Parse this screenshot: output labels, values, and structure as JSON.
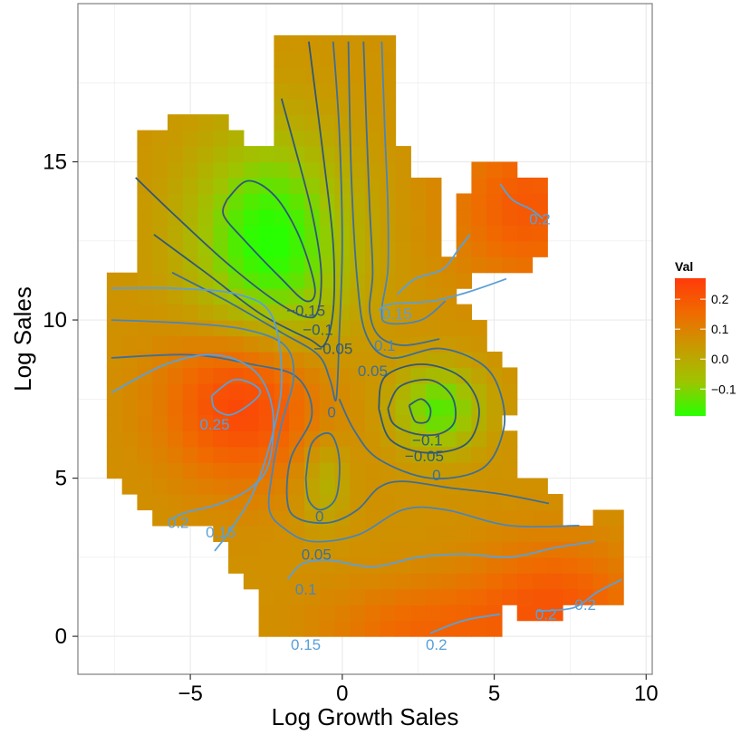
{
  "chart_data": {
    "type": "heatmap",
    "title": "",
    "xlabel": "Log Growth Sales",
    "ylabel": "Log Sales",
    "xlim": [
      -8.7,
      10.2
    ],
    "ylim": [
      -1.2,
      20.0
    ],
    "x_ticks": [
      -5,
      0,
      5,
      10
    ],
    "y_ticks": [
      0,
      5,
      10,
      15
    ],
    "x_tick_labels": [
      "−5",
      "0",
      "5",
      "10"
    ],
    "y_tick_labels": [
      "0",
      "5",
      "10",
      "15"
    ],
    "grid": true,
    "legend": {
      "title": "Val",
      "placement": "right",
      "range": [
        -0.19,
        0.27
      ],
      "ticks": [
        0.2,
        0.1,
        0.0,
        -0.1
      ],
      "tick_labels": [
        "0.2",
        "0.1",
        "0.0",
        "−0.1"
      ],
      "colors": [
        "#ff3a0a",
        "#f06a00",
        "#c89a00",
        "#9ec400",
        "#28ff00"
      ]
    },
    "contour_labels": [
      {
        "text": "−0.15",
        "x": -1.2,
        "y": 10.3,
        "value": -0.15
      },
      {
        "text": "−0.1",
        "x": -0.8,
        "y": 9.7,
        "value": -0.1
      },
      {
        "text": "−0.05",
        "x": -0.3,
        "y": 9.1,
        "value": -0.05
      },
      {
        "text": "0",
        "x": -0.35,
        "y": 7.1,
        "value": 0
      },
      {
        "text": "0.25",
        "x": -4.2,
        "y": 6.7,
        "value": 0.25
      },
      {
        "text": "0.2",
        "x": -5.4,
        "y": 3.6,
        "value": 0.2
      },
      {
        "text": "0.15",
        "x": -4.0,
        "y": 3.3,
        "value": 0.15
      },
      {
        "text": "0",
        "x": -0.75,
        "y": 3.8,
        "value": 0
      },
      {
        "text": "0.05",
        "x": -0.85,
        "y": 2.6,
        "value": 0.05
      },
      {
        "text": "0.1",
        "x": -1.2,
        "y": 1.5,
        "value": 0.1
      },
      {
        "text": "0.15",
        "x": -1.2,
        "y": -0.25,
        "value": 0.15
      },
      {
        "text": "0.2",
        "x": 3.1,
        "y": -0.25,
        "value": 0.2
      },
      {
        "text": "0.2",
        "x": 6.7,
        "y": 0.7,
        "value": 0.2
      },
      {
        "text": "0.2",
        "x": 8.0,
        "y": 1.0,
        "value": 0.2
      },
      {
        "text": "0.2",
        "x": 6.5,
        "y": 13.2,
        "value": 0.2
      },
      {
        "text": "0.15",
        "x": 1.8,
        "y": 10.2,
        "value": 0.15
      },
      {
        "text": "0.1",
        "x": 1.4,
        "y": 9.2,
        "value": 0.1
      },
      {
        "text": "0.05",
        "x": 1.0,
        "y": 8.4,
        "value": 0.05
      },
      {
        "text": "−0.1",
        "x": 2.8,
        "y": 6.2,
        "value": -0.1
      },
      {
        "text": "−0.05",
        "x": 2.7,
        "y": 5.7,
        "value": -0.05
      },
      {
        "text": "0",
        "x": 3.1,
        "y": 5.1,
        "value": 0
      }
    ],
    "contours": [
      {
        "value": -0.15,
        "points": [
          [
            -3.8,
            13.8
          ],
          [
            -3.1,
            14.4
          ],
          [
            -2.2,
            13.9
          ],
          [
            -1.4,
            12.6
          ],
          [
            -0.9,
            11.0
          ],
          [
            -1.2,
            10.6
          ],
          [
            -2.0,
            11.3
          ],
          [
            -3.2,
            12.5
          ],
          [
            -3.9,
            13.3
          ],
          [
            -3.8,
            13.8
          ]
        ]
      },
      {
        "value": -0.15,
        "points": [
          [
            2.2,
            7.3
          ],
          [
            2.6,
            7.5
          ],
          [
            2.9,
            7.2
          ],
          [
            2.8,
            6.8
          ],
          [
            2.4,
            6.8
          ],
          [
            2.2,
            7.3
          ]
        ]
      },
      {
        "value": -0.1,
        "points": [
          [
            -6.8,
            14.5
          ],
          [
            -5.5,
            13.3
          ],
          [
            -3.8,
            11.8
          ],
          [
            -2.2,
            10.6
          ],
          [
            -1.2,
            10.1
          ],
          [
            -0.8,
            10.3
          ],
          [
            -0.7,
            11.6
          ],
          [
            -1.0,
            13.4
          ],
          [
            -1.6,
            15.6
          ],
          [
            -2.0,
            17.0
          ]
        ]
      },
      {
        "value": -0.1,
        "points": [
          [
            1.5,
            7.2
          ],
          [
            1.9,
            7.9
          ],
          [
            2.9,
            8.1
          ],
          [
            3.6,
            7.6
          ],
          [
            3.7,
            6.8
          ],
          [
            3.2,
            6.4
          ],
          [
            2.4,
            6.4
          ],
          [
            1.7,
            6.7
          ],
          [
            1.5,
            7.2
          ]
        ]
      },
      {
        "value": -0.05,
        "points": [
          [
            -6.2,
            12.7
          ],
          [
            -4.5,
            11.5
          ],
          [
            -2.7,
            10.2
          ],
          [
            -1.1,
            9.4
          ],
          [
            -0.6,
            9.2
          ],
          [
            -0.3,
            10.3
          ],
          [
            -0.3,
            12.4
          ],
          [
            -0.6,
            15.0
          ],
          [
            -1.1,
            18.8
          ]
        ]
      },
      {
        "value": -0.05,
        "points": [
          [
            1.2,
            7.2
          ],
          [
            1.4,
            8.2
          ],
          [
            2.6,
            8.6
          ],
          [
            3.9,
            8.2
          ],
          [
            4.5,
            7.2
          ],
          [
            4.1,
            6.1
          ],
          [
            2.8,
            5.8
          ],
          [
            1.6,
            6.2
          ],
          [
            1.2,
            7.2
          ]
        ]
      },
      {
        "value": 0,
        "points": [
          [
            -5.6,
            11.5
          ],
          [
            -3.8,
            10.6
          ],
          [
            -2.0,
            9.6
          ],
          [
            -0.8,
            8.9
          ],
          [
            -0.4,
            8.1
          ],
          [
            -0.2,
            7.5
          ],
          [
            -0.1,
            9.5
          ],
          [
            0.0,
            12.4
          ],
          [
            -0.1,
            16.0
          ],
          [
            -0.3,
            18.8
          ]
        ]
      },
      {
        "value": 0,
        "points": [
          [
            -1.2,
            5.0
          ],
          [
            -1.0,
            6.1
          ],
          [
            -0.4,
            6.4
          ],
          [
            -0.1,
            5.6
          ],
          [
            -0.2,
            4.4
          ],
          [
            -0.7,
            4.0
          ],
          [
            -1.1,
            4.3
          ],
          [
            -1.2,
            5.0
          ]
        ]
      },
      {
        "value": 0,
        "points": [
          [
            -0.1,
            7.5
          ],
          [
            0.4,
            6.5
          ],
          [
            1.2,
            5.6
          ],
          [
            2.9,
            5.0
          ],
          [
            4.6,
            5.3
          ],
          [
            5.3,
            6.5
          ],
          [
            5.2,
            7.7
          ],
          [
            4.6,
            8.6
          ],
          [
            3.2,
            9.1
          ],
          [
            1.6,
            8.8
          ],
          [
            0.8,
            9.5
          ],
          [
            0.5,
            11.2
          ],
          [
            0.3,
            14.5
          ],
          [
            0.2,
            18.8
          ]
        ]
      },
      {
        "value": 0.05,
        "points": [
          [
            -7.6,
            8.8
          ],
          [
            -5.0,
            8.9
          ],
          [
            -3.0,
            8.6
          ],
          [
            -1.5,
            8.2
          ],
          [
            -1.0,
            7.0
          ],
          [
            -1.7,
            5.6
          ],
          [
            -1.8,
            4.2
          ],
          [
            -1.4,
            3.7
          ],
          [
            -0.4,
            3.6
          ],
          [
            0.5,
            4.0
          ],
          [
            1.2,
            4.7
          ],
          [
            2.0,
            4.9
          ],
          [
            3.5,
            4.7
          ],
          [
            5.2,
            4.5
          ],
          [
            6.8,
            4.2
          ]
        ]
      },
      {
        "value": 0.05,
        "points": [
          [
            0.7,
            18.8
          ],
          [
            0.8,
            16.0
          ],
          [
            0.9,
            13.6
          ],
          [
            1.0,
            11.5
          ],
          [
            0.9,
            10.3
          ],
          [
            1.2,
            9.5
          ],
          [
            2.0,
            9.2
          ],
          [
            3.2,
            9.4
          ]
        ]
      },
      {
        "value": 0.1,
        "points": [
          [
            -7.6,
            10.0
          ],
          [
            -5.2,
            9.9
          ],
          [
            -3.2,
            9.7
          ],
          [
            -1.9,
            9.2
          ],
          [
            -1.6,
            8.2
          ],
          [
            -2.0,
            6.7
          ],
          [
            -2.3,
            5.2
          ],
          [
            -2.4,
            4.0
          ],
          [
            -1.9,
            3.4
          ],
          [
            -1.0,
            3.0
          ],
          [
            0.5,
            3.2
          ],
          [
            2.0,
            4.0
          ],
          [
            3.4,
            4.0
          ],
          [
            5.5,
            3.5
          ],
          [
            7.8,
            3.5
          ]
        ]
      },
      {
        "value": 0.1,
        "points": [
          [
            1.3,
            18.8
          ],
          [
            1.4,
            16.0
          ],
          [
            1.5,
            13.6
          ],
          [
            1.5,
            11.6
          ],
          [
            1.3,
            10.3
          ],
          [
            1.5,
            9.9
          ],
          [
            2.6,
            10.0
          ],
          [
            3.4,
            10.6
          ]
        ]
      },
      {
        "value": 0.15,
        "points": [
          [
            -7.6,
            11.0
          ],
          [
            -5.5,
            11.0
          ],
          [
            -3.4,
            10.8
          ],
          [
            -2.3,
            10.1
          ],
          [
            -2.0,
            8.0
          ],
          [
            -2.4,
            6.0
          ],
          [
            -3.0,
            4.4
          ],
          [
            -3.8,
            3.2
          ],
          [
            -4.2,
            2.7
          ]
        ]
      },
      {
        "value": 0.15,
        "points": [
          [
            -1.8,
            1.8
          ],
          [
            -1.3,
            2.3
          ],
          [
            -0.4,
            2.4
          ],
          [
            1.0,
            2.2
          ],
          [
            2.5,
            2.5
          ],
          [
            4.0,
            2.6
          ],
          [
            5.5,
            2.5
          ],
          [
            7.0,
            2.8
          ],
          [
            8.3,
            3.0
          ]
        ]
      },
      {
        "value": 0.15,
        "points": [
          [
            1.8,
            10.8
          ],
          [
            2.4,
            11.3
          ],
          [
            3.3,
            11.6
          ],
          [
            3.8,
            12.2
          ],
          [
            4.2,
            12.7
          ]
        ]
      },
      {
        "value": 0.15,
        "points": [
          [
            1.2,
            10.3
          ],
          [
            1.6,
            10.5
          ],
          [
            3.0,
            10.6
          ],
          [
            4.2,
            10.9
          ],
          [
            5.4,
            11.3
          ]
        ]
      },
      {
        "value": 0.2,
        "points": [
          [
            -7.6,
            7.7
          ],
          [
            -5.8,
            8.6
          ],
          [
            -4.2,
            8.9
          ],
          [
            -2.9,
            8.4
          ],
          [
            -2.3,
            7.2
          ],
          [
            -2.4,
            5.5
          ],
          [
            -3.0,
            4.7
          ],
          [
            -4.0,
            4.2
          ],
          [
            -5.2,
            3.9
          ],
          [
            -5.6,
            3.7
          ]
        ]
      },
      {
        "value": 0.2,
        "points": [
          [
            2.9,
            0.1
          ],
          [
            4.0,
            0.5
          ],
          [
            5.2,
            0.7
          ]
        ]
      },
      {
        "value": 0.2,
        "points": [
          [
            6.4,
            0.8
          ],
          [
            7.6,
            0.9
          ],
          [
            8.4,
            1.4
          ],
          [
            9.2,
            1.8
          ]
        ]
      },
      {
        "value": 0.2,
        "points": [
          [
            5.2,
            14.3
          ],
          [
            5.6,
            13.8
          ],
          [
            6.2,
            13.5
          ],
          [
            6.6,
            13.2
          ]
        ]
      },
      {
        "value": 0.25,
        "points": [
          [
            -4.3,
            7.6
          ],
          [
            -3.6,
            8.1
          ],
          [
            -3.0,
            8.0
          ],
          [
            -2.7,
            7.7
          ],
          [
            -3.1,
            7.3
          ],
          [
            -3.7,
            7.0
          ],
          [
            -4.2,
            7.2
          ],
          [
            -4.3,
            7.6
          ]
        ]
      }
    ],
    "value_field": {
      "peaks": [
        {
          "x": -3.3,
          "y": 7.5,
          "value": 0.26,
          "sx": 2.5,
          "sy": 2.5
        },
        {
          "x": 3.2,
          "y": 7.2,
          "value": -0.15,
          "sx": 1.4,
          "sy": 1.3
        },
        {
          "x": -2.4,
          "y": 12.4,
          "value": -0.2,
          "sx": 2.6,
          "sy": 3.4
        },
        {
          "x": 6.1,
          "y": 13.6,
          "value": 0.2,
          "sx": 2.4,
          "sy": 2.4
        },
        {
          "x": 7.0,
          "y": 1.0,
          "value": 0.2,
          "sx": 2.8,
          "sy": 2.0
        },
        {
          "x": -0.6,
          "y": 4.9,
          "value": -0.03,
          "sx": 0.8,
          "sy": 1.4
        },
        {
          "x": 2.5,
          "y": 0.2,
          "value": 0.16,
          "sx": 3.0,
          "sy": 1.5
        }
      ],
      "base": 0.06
    }
  }
}
